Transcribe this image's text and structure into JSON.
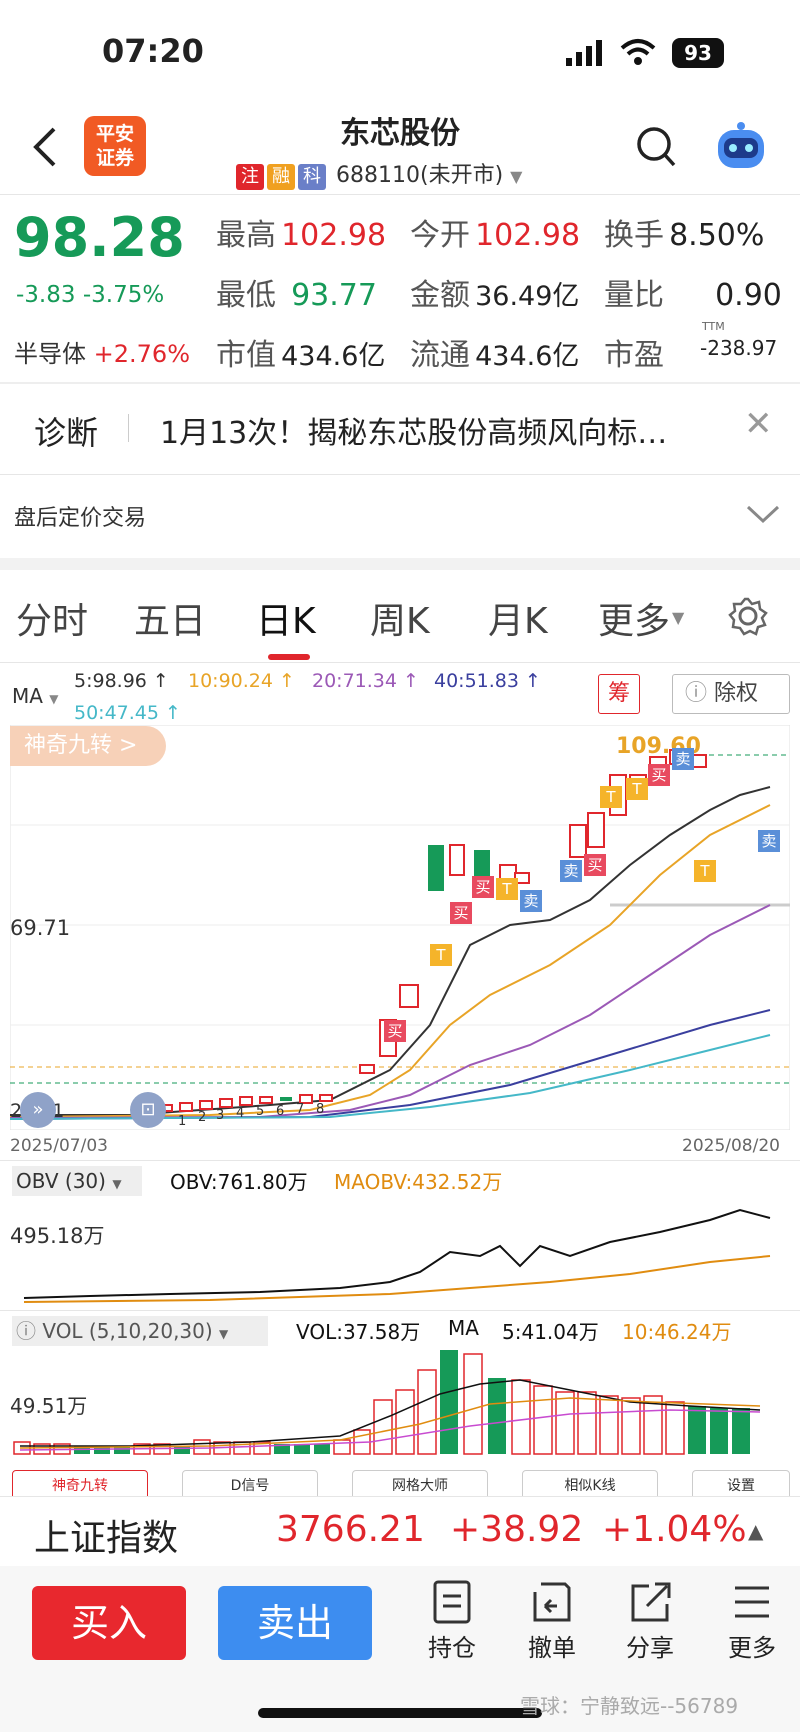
{
  "status_bar": {
    "time": "07:20",
    "battery": "93"
  },
  "header": {
    "back_icon": "chevron-left-icon",
    "broker_logo": "平安证券",
    "title": "东芯股份",
    "tags": [
      {
        "label": "注",
        "color": "#e0262c"
      },
      {
        "label": "融",
        "color": "#f0a020"
      },
      {
        "label": "科",
        "color": "#6a7fc8"
      }
    ],
    "code_status": "688110(未开市)",
    "search_icon": "search-icon",
    "robot_icon": "robot-icon"
  },
  "quote": {
    "price": "98.28",
    "change": "-3.83",
    "change_pct": "-3.75%",
    "sector": "半导体",
    "sector_change": "+2.76%",
    "fields": [
      {
        "label": "最高",
        "value": "102.98"
      },
      {
        "label": "今开",
        "value": "102.98"
      },
      {
        "label": "换手",
        "value": "8.50%"
      },
      {
        "label": "最低",
        "value": "93.77"
      },
      {
        "label": "金额",
        "value": "36.49亿"
      },
      {
        "label": "量比",
        "value": "0.90"
      },
      {
        "label": "市值",
        "value": "434.6亿"
      },
      {
        "label": "流通",
        "value": "434.6亿"
      },
      {
        "label": "市盈",
        "value": "-238.97"
      }
    ],
    "pe_superscript": "TTM"
  },
  "diagnosis": {
    "label": "诊断",
    "text": "1月13次！揭秘东芯股份高频风向标…"
  },
  "after_hours": {
    "label": "盘后定价交易"
  },
  "tabs": [
    "分时",
    "五日",
    "日K",
    "周K",
    "月K",
    "更多"
  ],
  "active_tab": "日K",
  "ma_legend": {
    "label": "MA",
    "items": [
      {
        "text": "5:98.96 ↑",
        "color": "#333333"
      },
      {
        "text": "10:90.24 ↑",
        "color": "#e8a427"
      },
      {
        "text": "20:71.34 ↑",
        "color": "#9b59b6"
      },
      {
        "text": "40:51.83 ↑",
        "color": "#3a3f9e"
      },
      {
        "text": "50:47.45 ↑",
        "color": "#45b8c8"
      }
    ],
    "chou_button": "筹",
    "fuquan_button": "除权"
  },
  "kline": {
    "nine_turn_badge": "神奇九转 >",
    "high_label": "109.60",
    "mid_label": "69.71",
    "low_label": "28.01",
    "start_date": "2025/07/03",
    "end_date": "2025/08/20"
  },
  "obv": {
    "selector": "OBV (30)",
    "obv_value": "OBV:761.80万",
    "maobv_value": "MAOBV:432.52万",
    "axis_label": "495.18万"
  },
  "vol": {
    "selector": "VOL (5,10,20,30)",
    "vol_value": "VOL:37.58万",
    "ma_label": "MA",
    "ma5": "5:41.04万",
    "ma10": "10:46.24万",
    "axis_label": "49.51万"
  },
  "tools": [
    "神奇九转",
    "D信号",
    "网格大师",
    "相似K线",
    "设置"
  ],
  "index_bar": {
    "name": "上证指数",
    "value": "3766.21",
    "change": "+38.92",
    "change_pct": "+1.04%"
  },
  "actions": {
    "buy": "买入",
    "sell": "卖出",
    "items": [
      {
        "label": "持仓",
        "icon": "document-icon"
      },
      {
        "label": "撤单",
        "icon": "undo-icon"
      },
      {
        "label": "分享",
        "icon": "share-icon"
      },
      {
        "label": "更多",
        "icon": "menu-icon"
      }
    ]
  },
  "watermark": "雪球：宁静致远--56789"
}
